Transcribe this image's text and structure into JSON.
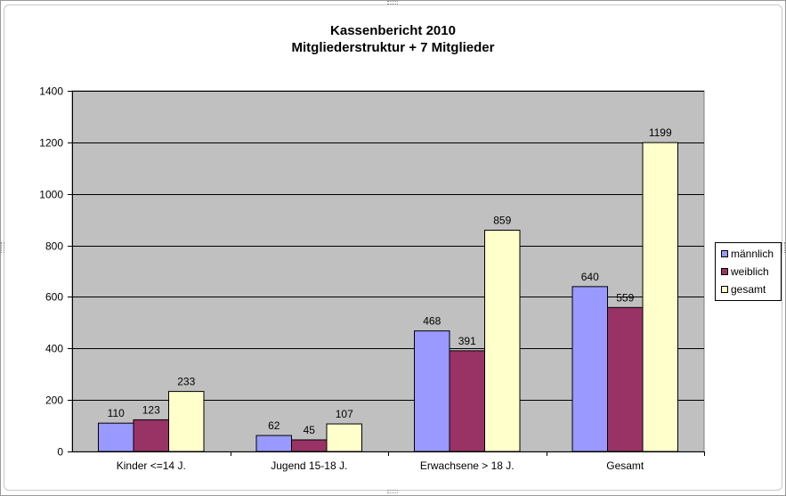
{
  "title_line1": "Kassenbericht  2010",
  "title_line2": "Mitgliederstruktur     + 7 Mitglieder",
  "colors": {
    "plot_bg": "#c0c0c0",
    "maennlich": "#9999ff",
    "weiblich": "#993366",
    "gesamt": "#ffffcc"
  },
  "chart_data": {
    "type": "bar",
    "categories": [
      "Kinder <=14 J.",
      "Jugend 15-18 J.",
      "Erwachsene > 18 J.",
      "Gesamt"
    ],
    "series": [
      {
        "name": "männlich",
        "values": [
          110,
          62,
          468,
          640
        ],
        "color": "#9999ff"
      },
      {
        "name": "weiblich",
        "values": [
          123,
          45,
          391,
          559
        ],
        "color": "#993366"
      },
      {
        "name": "gesamt",
        "values": [
          233,
          107,
          859,
          1199
        ],
        "color": "#ffffcc"
      }
    ],
    "ylim": [
      0,
      1400
    ],
    "yticks": [
      0,
      200,
      400,
      600,
      800,
      1000,
      1200,
      1400
    ],
    "grid": true,
    "legend": "right",
    "data_labels": true
  }
}
